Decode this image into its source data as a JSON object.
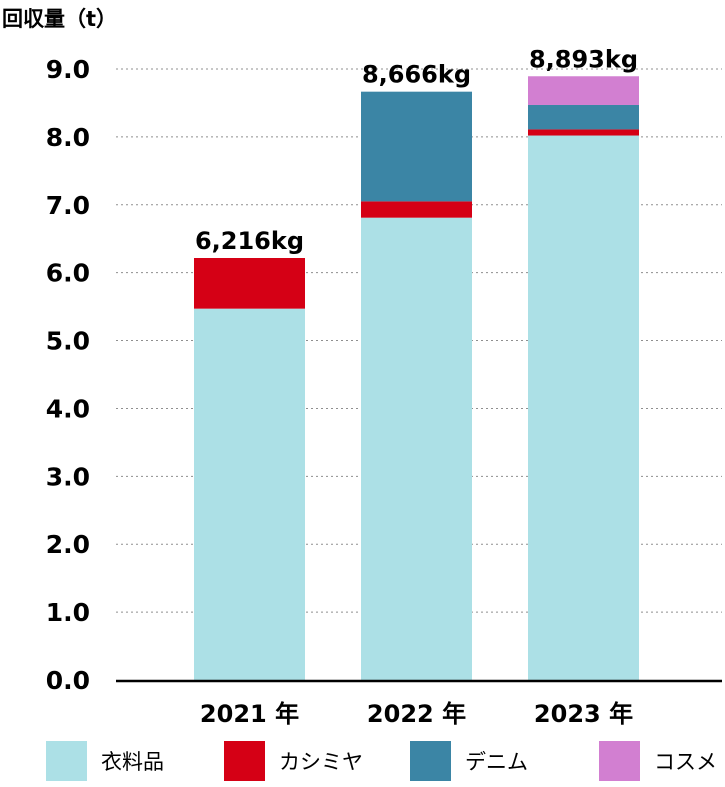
{
  "chart_data": {
    "type": "bar",
    "stacked": true,
    "ylabel": "回収量（t）",
    "ylim": [
      0,
      9.0
    ],
    "yticks": [
      "0.0",
      "1.0",
      "2.0",
      "3.0",
      "4.0",
      "5.0",
      "6.0",
      "7.0",
      "8.0",
      "9.0"
    ],
    "grid": "dotted-horizontal",
    "categories": [
      "2021 年",
      "2022 年",
      "2023 年"
    ],
    "totals": [
      "6,216kg",
      "8,666kg",
      "8,893kg"
    ],
    "series": [
      {
        "name": "衣料品",
        "color": "#ace0e6",
        "values": [
          5.47,
          6.81,
          8.02
        ]
      },
      {
        "name": "カシミヤ",
        "color": "#d50015",
        "values": [
          0.746,
          0.24,
          0.09
        ]
      },
      {
        "name": "デニム",
        "color": "#3b85a5",
        "values": [
          0,
          1.616,
          0.36
        ]
      },
      {
        "name": "コスメ",
        "color": "#d27fd1",
        "values": [
          0,
          0,
          0.423
        ]
      }
    ],
    "legend_position": "bottom"
  }
}
